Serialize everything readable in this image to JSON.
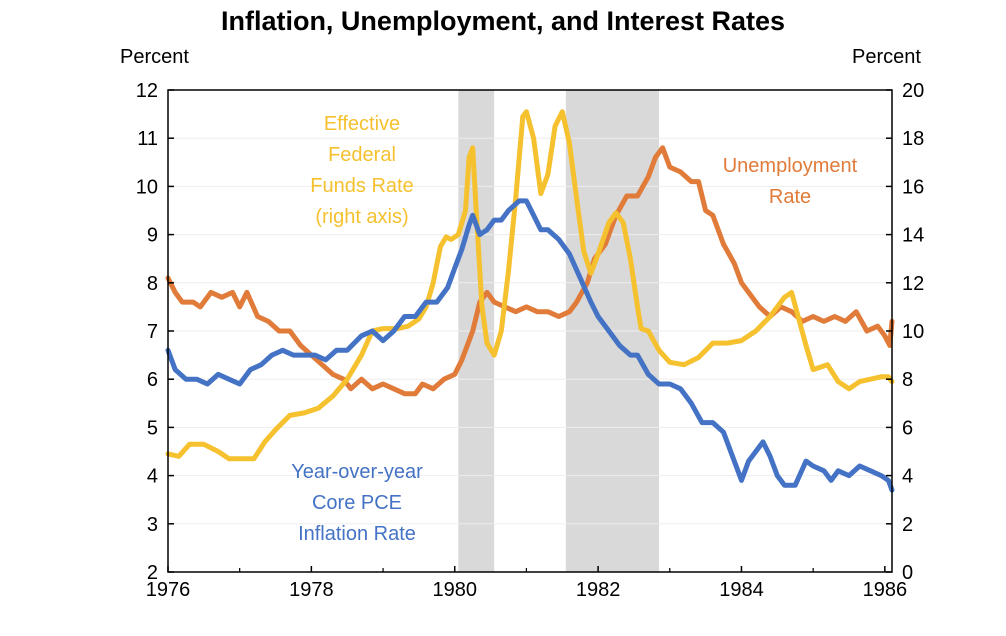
{
  "chart_data": {
    "type": "line",
    "title": "Inflation, Unemployment, and Interest Rates",
    "ylabel_left": "Percent",
    "ylabel_right": "Percent",
    "xlim": [
      1976,
      1986.1
    ],
    "ylim_left": [
      2,
      12
    ],
    "ylim_right": [
      0,
      20
    ],
    "x_ticks": [
      1976,
      1978,
      1980,
      1982,
      1984,
      1986
    ],
    "y_ticks_left": [
      2,
      3,
      4,
      5,
      6,
      7,
      8,
      9,
      10,
      11,
      12
    ],
    "y_ticks_right": [
      0,
      2,
      4,
      6,
      8,
      10,
      12,
      14,
      16,
      18,
      20
    ],
    "grid": true,
    "recessions": [
      [
        1980.05,
        1980.55
      ],
      [
        1981.55,
        1982.85
      ]
    ],
    "colors": {
      "unemployment": "#E07B39",
      "fed_funds": "#F6C12F",
      "core_pce": "#4472C4",
      "recession": "#D9D9D9"
    },
    "series": [
      {
        "key": "unemployment",
        "axis": "left",
        "label_lines": [
          "Unemployment",
          "Rate"
        ],
        "points": [
          [
            1976.0,
            8.1
          ],
          [
            1976.1,
            7.8
          ],
          [
            1976.2,
            7.6
          ],
          [
            1976.35,
            7.6
          ],
          [
            1976.45,
            7.5
          ],
          [
            1976.6,
            7.8
          ],
          [
            1976.75,
            7.7
          ],
          [
            1976.9,
            7.8
          ],
          [
            1977.0,
            7.5
          ],
          [
            1977.1,
            7.8
          ],
          [
            1977.25,
            7.3
          ],
          [
            1977.4,
            7.2
          ],
          [
            1977.55,
            7.0
          ],
          [
            1977.7,
            7.0
          ],
          [
            1977.85,
            6.7
          ],
          [
            1978.0,
            6.5
          ],
          [
            1978.15,
            6.3
          ],
          [
            1978.3,
            6.1
          ],
          [
            1978.45,
            6.0
          ],
          [
            1978.55,
            5.8
          ],
          [
            1978.7,
            6.0
          ],
          [
            1978.85,
            5.8
          ],
          [
            1979.0,
            5.9
          ],
          [
            1979.15,
            5.8
          ],
          [
            1979.3,
            5.7
          ],
          [
            1979.45,
            5.7
          ],
          [
            1979.55,
            5.9
          ],
          [
            1979.7,
            5.8
          ],
          [
            1979.85,
            6.0
          ],
          [
            1980.0,
            6.1
          ],
          [
            1980.1,
            6.4
          ],
          [
            1980.25,
            7.0
          ],
          [
            1980.35,
            7.6
          ],
          [
            1980.45,
            7.8
          ],
          [
            1980.55,
            7.6
          ],
          [
            1980.7,
            7.5
          ],
          [
            1980.85,
            7.4
          ],
          [
            1981.0,
            7.5
          ],
          [
            1981.15,
            7.4
          ],
          [
            1981.3,
            7.4
          ],
          [
            1981.45,
            7.3
          ],
          [
            1981.6,
            7.4
          ],
          [
            1981.7,
            7.6
          ],
          [
            1981.85,
            8.0
          ],
          [
            1981.95,
            8.5
          ],
          [
            1982.1,
            8.8
          ],
          [
            1982.25,
            9.4
          ],
          [
            1982.4,
            9.8
          ],
          [
            1982.55,
            9.8
          ],
          [
            1982.7,
            10.2
          ],
          [
            1982.8,
            10.6
          ],
          [
            1982.9,
            10.8
          ],
          [
            1983.0,
            10.4
          ],
          [
            1983.15,
            10.3
          ],
          [
            1983.3,
            10.1
          ],
          [
            1983.4,
            10.1
          ],
          [
            1983.5,
            9.5
          ],
          [
            1983.6,
            9.4
          ],
          [
            1983.75,
            8.8
          ],
          [
            1983.9,
            8.4
          ],
          [
            1984.0,
            8.0
          ],
          [
            1984.1,
            7.8
          ],
          [
            1984.25,
            7.5
          ],
          [
            1984.4,
            7.3
          ],
          [
            1984.55,
            7.5
          ],
          [
            1984.7,
            7.4
          ],
          [
            1984.85,
            7.2
          ],
          [
            1985.0,
            7.3
          ],
          [
            1985.15,
            7.2
          ],
          [
            1985.3,
            7.3
          ],
          [
            1985.45,
            7.2
          ],
          [
            1985.6,
            7.4
          ],
          [
            1985.75,
            7.0
          ],
          [
            1985.9,
            7.1
          ],
          [
            1986.0,
            6.9
          ],
          [
            1986.07,
            6.7
          ],
          [
            1986.1,
            7.2
          ]
        ]
      },
      {
        "key": "fed_funds",
        "axis": "right",
        "label_lines": [
          "Effective",
          "Federal",
          "Funds Rate",
          "(right axis)"
        ],
        "points": [
          [
            1976.0,
            4.9
          ],
          [
            1976.15,
            4.8
          ],
          [
            1976.3,
            5.3
          ],
          [
            1976.5,
            5.3
          ],
          [
            1976.7,
            5.0
          ],
          [
            1976.85,
            4.7
          ],
          [
            1977.0,
            4.7
          ],
          [
            1977.2,
            4.7
          ],
          [
            1977.35,
            5.4
          ],
          [
            1977.5,
            5.9
          ],
          [
            1977.7,
            6.5
          ],
          [
            1977.9,
            6.6
          ],
          [
            1978.1,
            6.8
          ],
          [
            1978.3,
            7.3
          ],
          [
            1978.5,
            8.0
          ],
          [
            1978.7,
            9.0
          ],
          [
            1978.85,
            10.0
          ],
          [
            1979.0,
            10.1
          ],
          [
            1979.2,
            10.1
          ],
          [
            1979.35,
            10.2
          ],
          [
            1979.5,
            10.5
          ],
          [
            1979.6,
            11.0
          ],
          [
            1979.7,
            12.0
          ],
          [
            1979.8,
            13.5
          ],
          [
            1979.88,
            13.9
          ],
          [
            1979.95,
            13.8
          ],
          [
            1980.05,
            14.0
          ],
          [
            1980.15,
            15.0
          ],
          [
            1980.2,
            17.2
          ],
          [
            1980.25,
            17.6
          ],
          [
            1980.3,
            15.0
          ],
          [
            1980.38,
            11.0
          ],
          [
            1980.45,
            9.5
          ],
          [
            1980.55,
            9.0
          ],
          [
            1980.65,
            10.0
          ],
          [
            1980.75,
            12.5
          ],
          [
            1980.85,
            15.5
          ],
          [
            1980.95,
            18.9
          ],
          [
            1981.0,
            19.1
          ],
          [
            1981.1,
            18.0
          ],
          [
            1981.2,
            15.7
          ],
          [
            1981.3,
            16.5
          ],
          [
            1981.4,
            18.5
          ],
          [
            1981.5,
            19.1
          ],
          [
            1981.6,
            17.8
          ],
          [
            1981.7,
            15.5
          ],
          [
            1981.8,
            13.3
          ],
          [
            1981.9,
            12.4
          ],
          [
            1982.0,
            13.2
          ],
          [
            1982.15,
            14.5
          ],
          [
            1982.25,
            14.9
          ],
          [
            1982.35,
            14.5
          ],
          [
            1982.45,
            13.0
          ],
          [
            1982.55,
            11.0
          ],
          [
            1982.6,
            10.1
          ],
          [
            1982.7,
            10.0
          ],
          [
            1982.85,
            9.2
          ],
          [
            1983.0,
            8.7
          ],
          [
            1983.2,
            8.6
          ],
          [
            1983.4,
            8.9
          ],
          [
            1983.6,
            9.5
          ],
          [
            1983.8,
            9.5
          ],
          [
            1984.0,
            9.6
          ],
          [
            1984.2,
            10.0
          ],
          [
            1984.4,
            10.6
          ],
          [
            1984.6,
            11.4
          ],
          [
            1984.7,
            11.6
          ],
          [
            1984.8,
            10.5
          ],
          [
            1984.9,
            9.4
          ],
          [
            1985.0,
            8.4
          ],
          [
            1985.2,
            8.6
          ],
          [
            1985.35,
            7.9
          ],
          [
            1985.5,
            7.6
          ],
          [
            1985.65,
            7.9
          ],
          [
            1985.8,
            8.0
          ],
          [
            1985.95,
            8.1
          ],
          [
            1986.05,
            8.1
          ],
          [
            1986.1,
            7.9
          ]
        ]
      },
      {
        "key": "core_pce",
        "axis": "left",
        "label_lines": [
          "Year-over-year",
          "Core PCE",
          "Inflation Rate"
        ],
        "points": [
          [
            1976.0,
            6.6
          ],
          [
            1976.1,
            6.2
          ],
          [
            1976.25,
            6.0
          ],
          [
            1976.4,
            6.0
          ],
          [
            1976.55,
            5.9
          ],
          [
            1976.7,
            6.1
          ],
          [
            1976.85,
            6.0
          ],
          [
            1977.0,
            5.9
          ],
          [
            1977.15,
            6.2
          ],
          [
            1977.3,
            6.3
          ],
          [
            1977.45,
            6.5
          ],
          [
            1977.6,
            6.6
          ],
          [
            1977.75,
            6.5
          ],
          [
            1977.9,
            6.5
          ],
          [
            1978.05,
            6.5
          ],
          [
            1978.2,
            6.4
          ],
          [
            1978.35,
            6.6
          ],
          [
            1978.5,
            6.6
          ],
          [
            1978.7,
            6.9
          ],
          [
            1978.85,
            7.0
          ],
          [
            1979.0,
            6.8
          ],
          [
            1979.15,
            7.0
          ],
          [
            1979.3,
            7.3
          ],
          [
            1979.45,
            7.3
          ],
          [
            1979.6,
            7.6
          ],
          [
            1979.75,
            7.6
          ],
          [
            1979.9,
            7.9
          ],
          [
            1980.0,
            8.3
          ],
          [
            1980.1,
            8.7
          ],
          [
            1980.2,
            9.2
          ],
          [
            1980.25,
            9.4
          ],
          [
            1980.35,
            9.0
          ],
          [
            1980.45,
            9.1
          ],
          [
            1980.55,
            9.3
          ],
          [
            1980.65,
            9.3
          ],
          [
            1980.75,
            9.5
          ],
          [
            1980.9,
            9.7
          ],
          [
            1981.0,
            9.7
          ],
          [
            1981.1,
            9.4
          ],
          [
            1981.2,
            9.1
          ],
          [
            1981.3,
            9.1
          ],
          [
            1981.45,
            8.9
          ],
          [
            1981.6,
            8.6
          ],
          [
            1981.75,
            8.1
          ],
          [
            1981.9,
            7.6
          ],
          [
            1982.0,
            7.3
          ],
          [
            1982.15,
            7.0
          ],
          [
            1982.3,
            6.7
          ],
          [
            1982.45,
            6.5
          ],
          [
            1982.55,
            6.5
          ],
          [
            1982.7,
            6.1
          ],
          [
            1982.85,
            5.9
          ],
          [
            1983.0,
            5.9
          ],
          [
            1983.15,
            5.8
          ],
          [
            1983.3,
            5.5
          ],
          [
            1983.45,
            5.1
          ],
          [
            1983.6,
            5.1
          ],
          [
            1983.75,
            4.9
          ],
          [
            1983.9,
            4.3
          ],
          [
            1984.0,
            3.9
          ],
          [
            1984.1,
            4.3
          ],
          [
            1984.2,
            4.5
          ],
          [
            1984.3,
            4.7
          ],
          [
            1984.4,
            4.4
          ],
          [
            1984.5,
            4.0
          ],
          [
            1984.6,
            3.8
          ],
          [
            1984.75,
            3.8
          ],
          [
            1984.9,
            4.3
          ],
          [
            1985.0,
            4.2
          ],
          [
            1985.15,
            4.1
          ],
          [
            1985.25,
            3.9
          ],
          [
            1985.35,
            4.1
          ],
          [
            1985.5,
            4.0
          ],
          [
            1985.65,
            4.2
          ],
          [
            1985.8,
            4.1
          ],
          [
            1985.95,
            4.0
          ],
          [
            1986.05,
            3.9
          ],
          [
            1986.1,
            3.7
          ]
        ]
      }
    ]
  }
}
